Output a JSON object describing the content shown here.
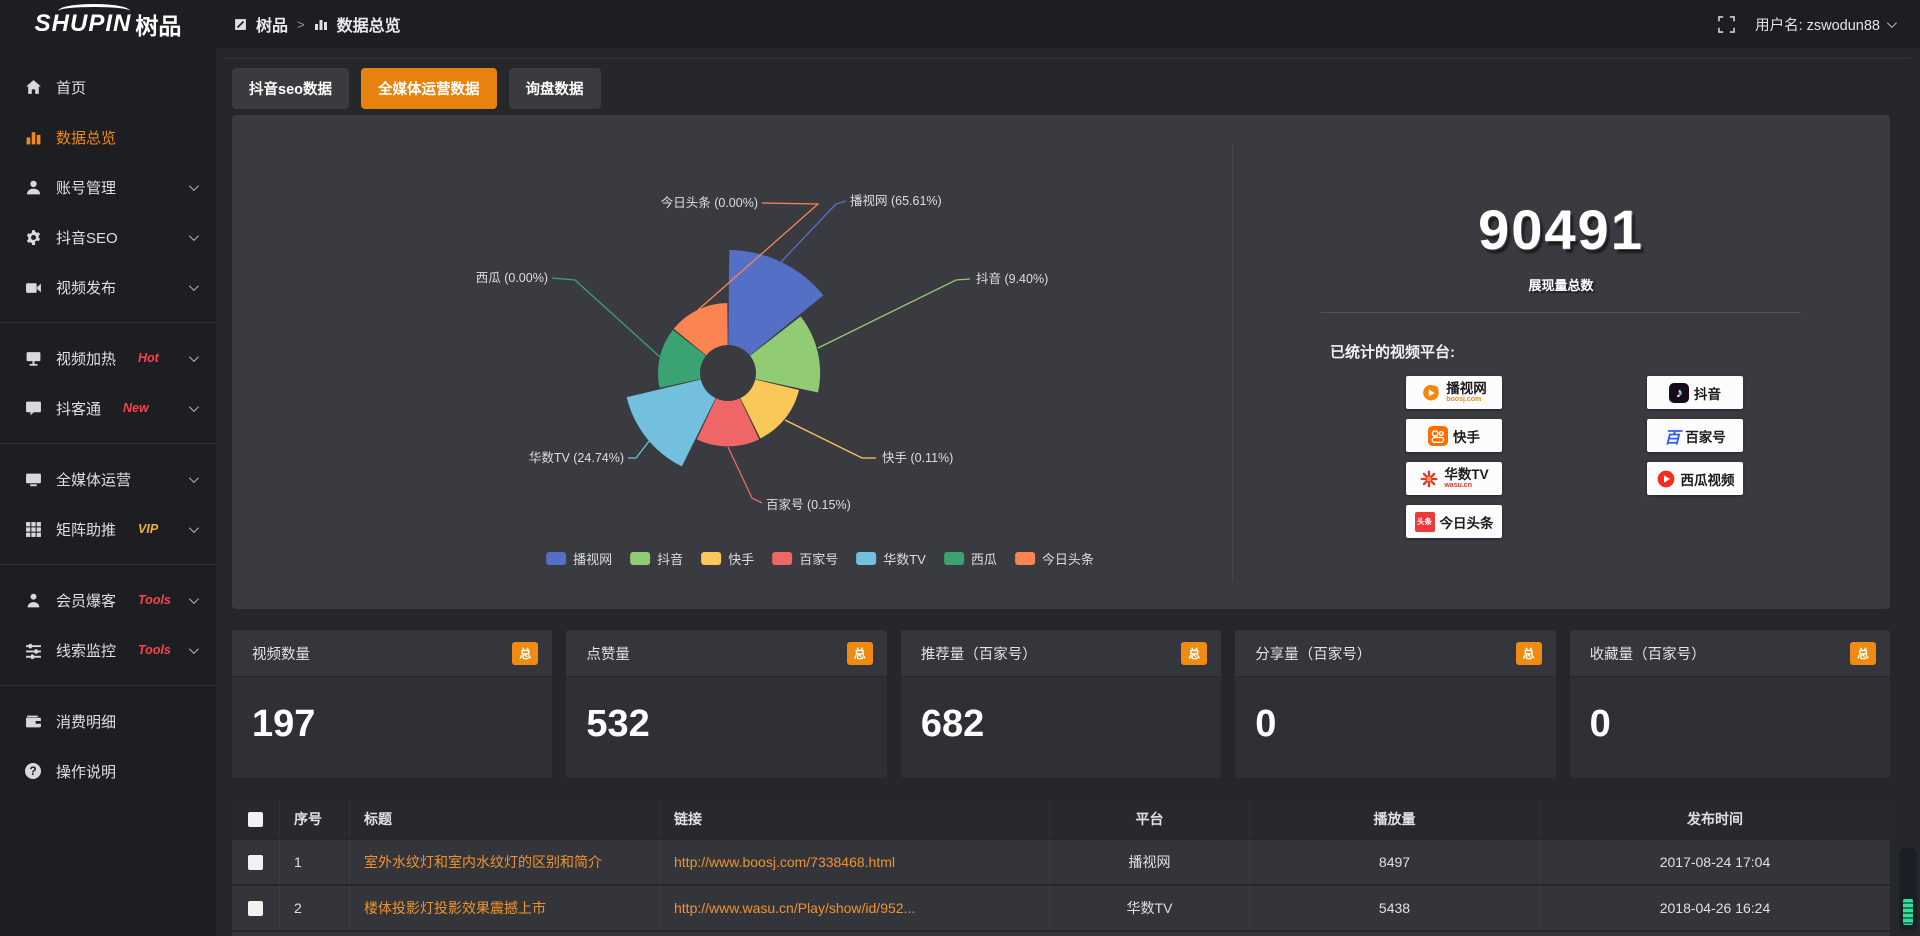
{
  "topbar": {
    "logo_en": "SHUPIN",
    "logo_cn": "树品",
    "breadcrumb": {
      "root": "树品",
      "separator": ">",
      "current": "数据总览"
    },
    "username": "用户名: zswodun88"
  },
  "sidebar": {
    "items": [
      {
        "label": "首页",
        "icon": "home-icon"
      },
      {
        "label": "数据总览",
        "icon": "bar-chart-icon",
        "active": true
      },
      {
        "label": "账号管理",
        "icon": "user-icon",
        "chevron": true
      },
      {
        "label": "抖音SEO",
        "icon": "gear-icon",
        "chevron": true
      },
      {
        "label": "视频发布",
        "icon": "video-camera-icon",
        "chevron": true
      },
      {
        "label": "视频加热",
        "icon": "monitor-icon",
        "badge": "Hot",
        "badge_color": "#f5454a",
        "chevron": true
      },
      {
        "label": "抖客通",
        "icon": "chat-bubble-icon",
        "badge": "New",
        "badge_color": "#f5454a",
        "chevron": true
      },
      {
        "label": "全媒体运营",
        "icon": "screen-icon",
        "chevron": true
      },
      {
        "label": "矩阵助推",
        "icon": "grid-icon",
        "badge": "VIP",
        "badge_color": "#efae3f",
        "chevron": true
      },
      {
        "label": "会员爆客",
        "icon": "person-icon",
        "badge": "Tools",
        "badge_color": "#f5454a",
        "chevron": true
      },
      {
        "label": "线索监控",
        "icon": "sliders-icon",
        "badge": "Tools",
        "badge_color": "#f5454a",
        "chevron": true
      },
      {
        "label": "消费明细",
        "icon": "wallet-icon"
      },
      {
        "label": "操作说明",
        "icon": "question-icon"
      }
    ]
  },
  "tabs": [
    {
      "label": "抖音seo数据",
      "active": false
    },
    {
      "label": "全媒体运营数据",
      "active": true
    },
    {
      "label": "询盘数据",
      "active": false
    }
  ],
  "chart_data": {
    "type": "pie",
    "rose": true,
    "title": "",
    "legend_position": "bottom",
    "slices": [
      {
        "name": "播视网",
        "pct": 65.61,
        "color": "#5470c6",
        "label": "播视网 (65.61%)"
      },
      {
        "name": "抖音",
        "pct": 9.4,
        "color": "#91cc75",
        "label": "抖音 (9.40%)"
      },
      {
        "name": "快手",
        "pct": 0.11,
        "color": "#fac858",
        "label": "快手 (0.11%)"
      },
      {
        "name": "百家号",
        "pct": 0.15,
        "color": "#ee6666",
        "label": "百家号 (0.15%)"
      },
      {
        "name": "华数TV",
        "pct": 24.74,
        "color": "#73c0de",
        "label": "华数TV (24.74%)"
      },
      {
        "name": "西瓜",
        "pct": 0.0,
        "color": "#3ba272",
        "label": "西瓜 (0.00%)"
      },
      {
        "name": "今日头条",
        "pct": 0.0,
        "color": "#fc8452",
        "label": "今日头条 (0.00%)"
      }
    ]
  },
  "summary": {
    "total_value": "90491",
    "total_label": "展现量总数",
    "platforms_title": "已统计的视频平台:",
    "platforms": [
      {
        "name": "播视网",
        "sub": "boosj.com",
        "icon": "boosj-logo"
      },
      {
        "name": "快手",
        "icon": "kuaishou-logo"
      },
      {
        "name": "华数TV",
        "sub": "wasu.cn",
        "icon": "wasu-logo"
      },
      {
        "name": "今日头条",
        "icon": "toutiao-logo",
        "icon_text": "头条"
      },
      {
        "name": "抖音",
        "icon": "douyin-logo",
        "icon_text": "♪"
      },
      {
        "name": "百家号",
        "icon": "baijiahao-logo",
        "icon_text": "百"
      },
      {
        "name": "西瓜视频",
        "icon": "xigua-logo"
      }
    ]
  },
  "stats": [
    {
      "title": "视频数量",
      "badge": "总",
      "value": "197"
    },
    {
      "title": "点赞量",
      "badge": "总",
      "value": "532"
    },
    {
      "title": "推荐量（百家号）",
      "badge": "总",
      "value": "682"
    },
    {
      "title": "分享量（百家号）",
      "badge": "总",
      "value": "0"
    },
    {
      "title": "收藏量（百家号）",
      "badge": "总",
      "value": "0"
    }
  ],
  "table": {
    "headers": {
      "num": "序号",
      "title": "标题",
      "link": "链接",
      "platform": "平台",
      "views": "播放量",
      "time": "发布时间"
    },
    "rows": [
      {
        "num": "1",
        "title": "室外水纹灯和室内水纹灯的区别和简介",
        "link": "http://www.boosj.com/7338468.html",
        "platform": "播视网",
        "views": "8497",
        "time": "2017-08-24 17:04"
      },
      {
        "num": "2",
        "title": "楼体投影灯投影效果震撼上市",
        "link": "http://www.wasu.cn/Play/show/id/952...",
        "platform": "华数TV",
        "views": "5438",
        "time": "2018-04-26 16:24"
      }
    ]
  },
  "colors": {
    "accent_orange": "#e8820e",
    "badge_orange": "#ef8b12",
    "link_orange": "#f0932e",
    "sidebar_active": "#f28a1c",
    "hot_red": "#f5454a",
    "vip_gold": "#efae3f"
  }
}
